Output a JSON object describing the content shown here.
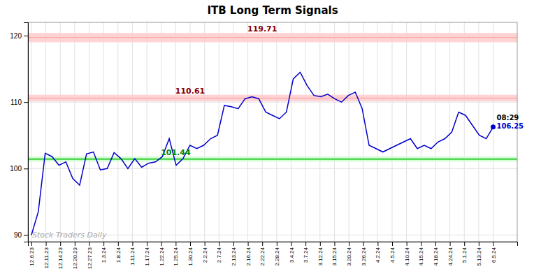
{
  "chart_data": {
    "type": "line",
    "title": "ITB Long Term Signals",
    "x": [
      0,
      1,
      2,
      3,
      4,
      5,
      6,
      7,
      8,
      9,
      10,
      11,
      12,
      13,
      14,
      15,
      16,
      17,
      18,
      19,
      20,
      21,
      22,
      23,
      24,
      25,
      26,
      27,
      28,
      29,
      30,
      31,
      32,
      33,
      34,
      35,
      36,
      37,
      38,
      39,
      40,
      41,
      42,
      43,
      44,
      45,
      46,
      47,
      48,
      49,
      50,
      51,
      52,
      53,
      54,
      55,
      56,
      57,
      58,
      59,
      60,
      61,
      62,
      63,
      64,
      65,
      66,
      67
    ],
    "values": [
      90.0,
      93.5,
      102.3,
      101.8,
      100.5,
      101.0,
      98.5,
      97.5,
      102.2,
      102.5,
      99.8,
      100.0,
      102.4,
      101.5,
      100.0,
      101.5,
      100.2,
      100.8,
      101.0,
      101.8,
      104.5,
      100.5,
      101.5,
      103.5,
      103.0,
      103.5,
      104.5,
      105.0,
      109.5,
      109.3,
      109.0,
      110.5,
      110.8,
      110.5,
      108.5,
      108.0,
      107.5,
      108.5,
      113.5,
      114.5,
      112.5,
      111.0,
      110.8,
      111.2,
      110.5,
      110.0,
      111.0,
      111.5,
      109.0,
      103.5,
      103.0,
      102.5,
      103.0,
      103.5,
      104.0,
      104.5,
      103.0,
      103.5,
      103.0,
      104.0,
      104.5,
      105.5,
      108.5,
      108.0,
      106.5,
      105.0,
      104.5,
      106.25
    ],
    "color": "#0000CC",
    "xlim": [
      -0.5,
      70.5
    ],
    "xticks": [
      {
        "value": 0,
        "label": "12.6.23"
      },
      {
        "value": 2.09375,
        "label": "12.11.23"
      },
      {
        "value": 4.1875,
        "label": "12.14.23"
      },
      {
        "value": 6.28125,
        "label": "12.20.23"
      },
      {
        "value": 8.375,
        "label": "12.27.23"
      },
      {
        "value": 10.46875,
        "label": "1.3.24"
      },
      {
        "value": 12.5625,
        "label": "1.8.24"
      },
      {
        "value": 14.65625,
        "label": "1.11.24"
      },
      {
        "value": 16.75,
        "label": "1.17.24"
      },
      {
        "value": 18.84375,
        "label": "1.22.24"
      },
      {
        "value": 20.9375,
        "label": "1.25.24"
      },
      {
        "value": 23.03125,
        "label": "1.30.24"
      },
      {
        "value": 25.125,
        "label": "2.2.24"
      },
      {
        "value": 27.21875,
        "label": "2.7.24"
      },
      {
        "value": 29.3125,
        "label": "2.13.24"
      },
      {
        "value": 31.40625,
        "label": "2.16.24"
      },
      {
        "value": 33.5,
        "label": "2.22.24"
      },
      {
        "value": 35.59375,
        "label": "2.28.24"
      },
      {
        "value": 37.6875,
        "label": "3.4.24"
      },
      {
        "value": 39.78125,
        "label": "3.7.24"
      },
      {
        "value": 41.875,
        "label": "3.12.24"
      },
      {
        "value": 43.96875,
        "label": "3.15.24"
      },
      {
        "value": 46.0625,
        "label": "3.20.24"
      },
      {
        "value": 48.15625,
        "label": "3.26.24"
      },
      {
        "value": 50.25,
        "label": "4.2.24"
      },
      {
        "value": 52.34375,
        "label": "4.5.24"
      },
      {
        "value": 54.4375,
        "label": "4.10.24"
      },
      {
        "value": 56.53125,
        "label": "4.15.24"
      },
      {
        "value": 58.625,
        "label": "4.18.24"
      },
      {
        "value": 60.71875,
        "label": "4.24.24"
      },
      {
        "value": 62.8125,
        "label": "5.1.24"
      },
      {
        "value": 64.90625,
        "label": "5.13.24"
      },
      {
        "value": 67,
        "label": "6.5.24"
      }
    ],
    "ylim": [
      89,
      122
    ],
    "yticks": [
      90,
      100,
      110,
      120
    ],
    "grid": true,
    "levels": [
      {
        "value": 119.71,
        "half_width": 0.7,
        "color": "#ff9999",
        "band_color": "#ffcccc",
        "label_color": "#880000"
      },
      {
        "value": 110.61,
        "half_width": 0.5,
        "color": "#ff9999",
        "band_color": "#ffcccc",
        "label_color": "#880000"
      },
      {
        "value": 101.44,
        "half_width": 0.4,
        "color": "#00bb00",
        "band_color": "#ccffcc",
        "label_color": "#008800"
      }
    ],
    "last_price": 106.25,
    "last_time": "08:29",
    "watermark": "Stock Traders Daily",
    "watermark_color": "#aaaaaa"
  }
}
